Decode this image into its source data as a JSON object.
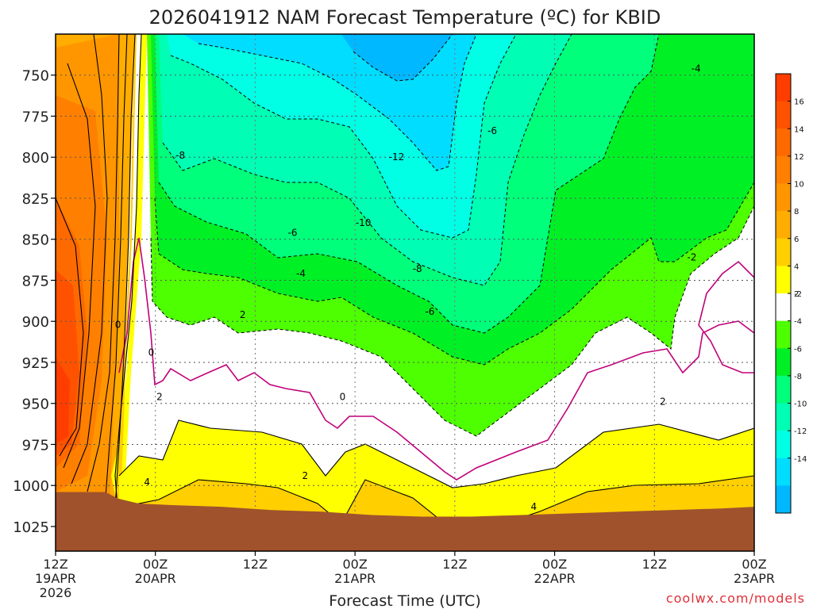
{
  "chart_data": {
    "type": "heatmap",
    "title": "2026041912 NAM Forecast Temperature (ºC) for KBID",
    "xlabel": "Forecast Time (UTC)",
    "ylabel": "",
    "y_axis": {
      "ticks": [
        750,
        775,
        800,
        825,
        850,
        875,
        900,
        925,
        950,
        975,
        1000,
        1025
      ],
      "range_hpa": [
        725,
        1040
      ],
      "orientation": "pressure increasing downward"
    },
    "x_axis": {
      "ticks": [
        {
          "label": "12Z",
          "sub1": "19APR",
          "sub2": "2026",
          "hour": 0
        },
        {
          "label": "00Z",
          "sub1": "20APR",
          "sub2": "",
          "hour": 12
        },
        {
          "label": "12Z",
          "sub1": "",
          "sub2": "",
          "hour": 24
        },
        {
          "label": "00Z",
          "sub1": "21APR",
          "sub2": "",
          "hour": 36
        },
        {
          "label": "12Z",
          "sub1": "",
          "sub2": "",
          "hour": 48
        },
        {
          "label": "00Z",
          "sub1": "22APR",
          "sub2": "",
          "hour": 60
        },
        {
          "label": "12Z",
          "sub1": "",
          "sub2": "",
          "hour": 72
        },
        {
          "label": "00Z",
          "sub1": "23APR",
          "sub2": "",
          "hour": 84
        }
      ],
      "range_hours": [
        0,
        84
      ]
    },
    "colorbar": {
      "ticks": [
        16,
        14,
        12,
        10,
        8,
        6,
        4,
        2,
        -2,
        -4,
        -6,
        -8,
        -10,
        -12,
        -14
      ],
      "bins": [
        {
          "from": 16,
          "to": 18,
          "color": "#ff3d00"
        },
        {
          "from": 14,
          "to": 16,
          "color": "#ff5200"
        },
        {
          "from": 12,
          "to": 14,
          "color": "#ff6a00"
        },
        {
          "from": 10,
          "to": 12,
          "color": "#ff8000"
        },
        {
          "from": 8,
          "to": 10,
          "color": "#ff9600"
        },
        {
          "from": 6,
          "to": 8,
          "color": "#ffad00"
        },
        {
          "from": 4,
          "to": 6,
          "color": "#ffcf00"
        },
        {
          "from": 2,
          "to": 4,
          "color": "#ffff00"
        },
        {
          "from": -2,
          "to": 2,
          "color": "#ffffff"
        },
        {
          "from": -4,
          "to": -2,
          "color": "#4dff00"
        },
        {
          "from": -6,
          "to": -4,
          "color": "#00f026"
        },
        {
          "from": -8,
          "to": -6,
          "color": "#00ff7a"
        },
        {
          "from": -10,
          "to": -8,
          "color": "#00ffb4"
        },
        {
          "from": -12,
          "to": -10,
          "color": "#00ffe5"
        },
        {
          "from": -14,
          "to": -12,
          "color": "#00ddff"
        },
        {
          "from": -16,
          "to": -14,
          "color": "#00b8ff"
        }
      ]
    },
    "contour_labels": [
      {
        "text": "-12",
        "hour": 41.0,
        "hpa": 800
      },
      {
        "text": "-10",
        "hour": 37.0,
        "hpa": 840
      },
      {
        "text": "-8",
        "hour": 15.0,
        "hpa": 799
      },
      {
        "text": "-8",
        "hour": 43.5,
        "hpa": 868
      },
      {
        "text": "-6",
        "hour": 28.5,
        "hpa": 846
      },
      {
        "text": "-6",
        "hour": 52.5,
        "hpa": 784
      },
      {
        "text": "-6",
        "hour": 45.0,
        "hpa": 894
      },
      {
        "text": "-4",
        "hour": 29.5,
        "hpa": 871
      },
      {
        "text": "-4",
        "hour": 77.0,
        "hpa": 746
      },
      {
        "text": "-2",
        "hour": 76.5,
        "hpa": 861
      },
      {
        "text": "2",
        "hour": 22.5,
        "hpa": 896
      },
      {
        "text": "0",
        "hour": 7.5,
        "hpa": 902
      },
      {
        "text": "0",
        "hour": 11.5,
        "hpa": 919
      },
      {
        "text": "2",
        "hour": 12.5,
        "hpa": 946
      },
      {
        "text": "0",
        "hour": 34.5,
        "hpa": 946
      },
      {
        "text": "2",
        "hour": 73.0,
        "hpa": 949
      },
      {
        "text": "4",
        "hour": 11.0,
        "hpa": 998
      },
      {
        "text": "2",
        "hour": 30.0,
        "hpa": 994
      },
      {
        "text": "4",
        "hour": 57.5,
        "hpa": 1013
      }
    ],
    "series": [
      {
        "name": "surface (terrain)",
        "color": "#a0522d",
        "hours": [
          0,
          6,
          7.5,
          10,
          14,
          20,
          26,
          32,
          38,
          44,
          50,
          56,
          62,
          68,
          74,
          80,
          84
        ],
        "hpa": [
          1004,
          1004,
          1008,
          1011,
          1012,
          1013,
          1015,
          1016,
          1018,
          1019,
          1019,
          1018,
          1017,
          1016,
          1015,
          1014,
          1013
        ]
      }
    ]
  },
  "credit": "coolwx.com/models"
}
